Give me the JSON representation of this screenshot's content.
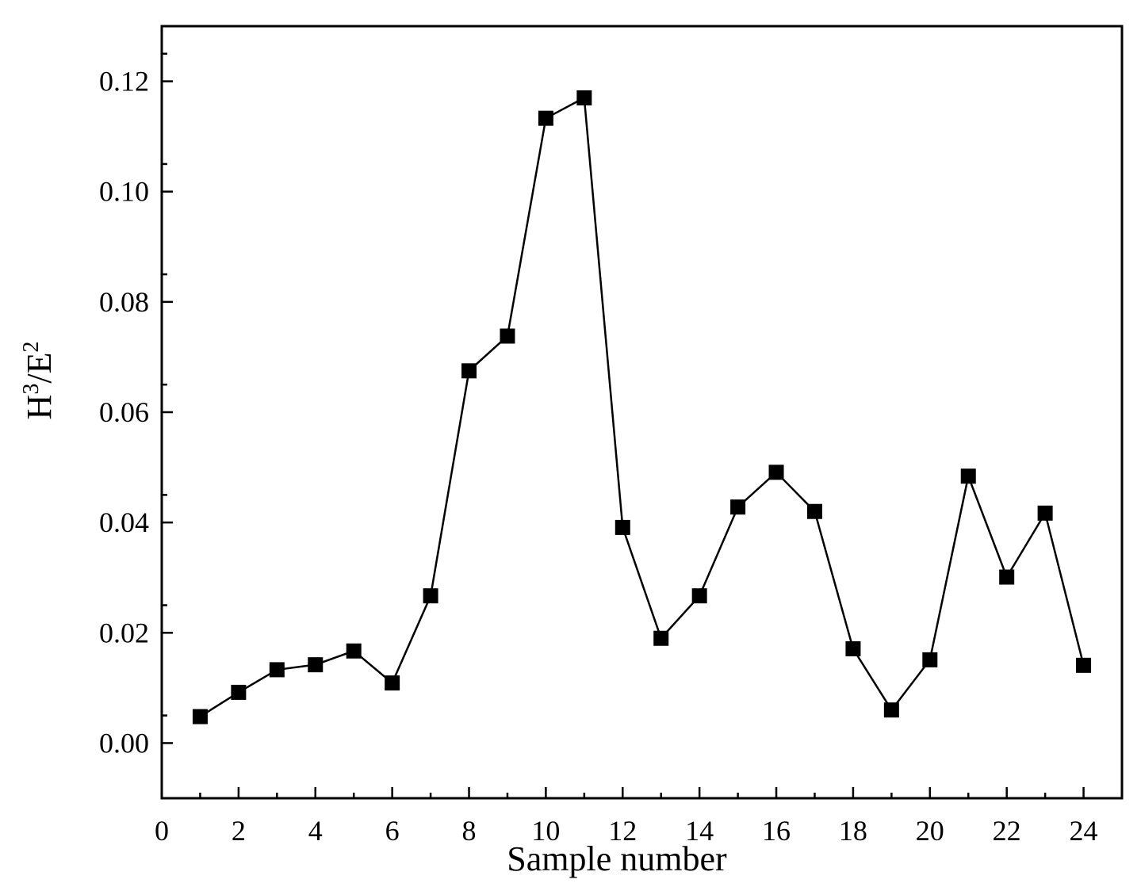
{
  "chart_data": {
    "type": "line",
    "title": "",
    "xlabel": "Sample number",
    "ylabel": {
      "base": "H",
      "sup1": "3",
      "mid": "/E",
      "sup2": "2"
    },
    "xlim": [
      0,
      25
    ],
    "ylim": [
      -0.01,
      0.13
    ],
    "xticks": [
      0,
      2,
      4,
      6,
      8,
      10,
      12,
      14,
      16,
      18,
      20,
      22,
      24
    ],
    "xtick_labels": [
      "0",
      "2",
      "4",
      "6",
      "8",
      "10",
      "12",
      "14",
      "16",
      "18",
      "20",
      "22",
      "24"
    ],
    "yticks": [
      0.0,
      0.02,
      0.04,
      0.06,
      0.08,
      0.1,
      0.12
    ],
    "ytick_labels": [
      "0.00",
      "0.02",
      "0.04",
      "0.06",
      "0.08",
      "0.10",
      "0.12"
    ],
    "grid": false,
    "marker": "square",
    "series": [
      {
        "x": [
          1,
          2,
          3,
          4,
          5,
          6,
          7,
          8,
          9,
          10,
          11,
          12,
          13,
          14,
          15,
          16,
          17,
          18,
          19,
          20,
          21,
          22,
          23,
          24
        ],
        "values": [
          0.0048,
          0.0092,
          0.0133,
          0.0142,
          0.0167,
          0.0109,
          0.0267,
          0.0675,
          0.0738,
          0.1133,
          0.117,
          0.0391,
          0.019,
          0.0267,
          0.0428,
          0.0491,
          0.042,
          0.0171,
          0.006,
          0.0151,
          0.0484,
          0.0301,
          0.0417,
          0.0141
        ],
        "color": "#000000"
      }
    ]
  }
}
